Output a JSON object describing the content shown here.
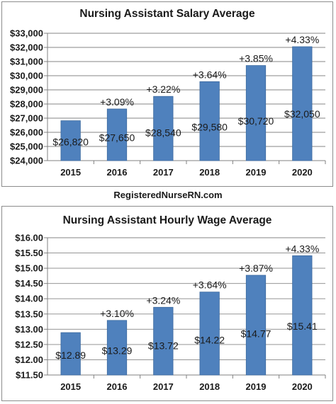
{
  "source_text": "RegisteredNurseRN.com",
  "colors": {
    "bar": "#4f81bd",
    "bar_edge": "#3c6a9f",
    "text": "#1a1a1a",
    "axis": "#808080",
    "grid": "#868686"
  },
  "chart_data": [
    {
      "type": "bar",
      "title": "Nursing Assistant Salary Average",
      "categories": [
        "2015",
        "2016",
        "2017",
        "2018",
        "2019",
        "2020"
      ],
      "values": [
        26820,
        27650,
        28540,
        29580,
        30720,
        32050
      ],
      "value_labels": [
        "$26,820",
        "$27,650",
        "$28,540",
        "$29,580",
        "$30,720",
        "$32,050"
      ],
      "change_labels": [
        "",
        "+3.09%",
        "+3.22%",
        "+3.64%",
        "+3.85%",
        "+4.33%"
      ],
      "ylim": [
        24000,
        33000
      ],
      "yticks": [
        24000,
        25000,
        26000,
        27000,
        28000,
        29000,
        30000,
        31000,
        32000,
        33000
      ],
      "ytick_labels": [
        "$24,000",
        "$25,000",
        "$26,000",
        "$27,000",
        "$28,000",
        "$29,000",
        "$30,000",
        "$31,000",
        "$32,000",
        "$33,000"
      ],
      "grid": true,
      "xlabel": "",
      "ylabel": ""
    },
    {
      "type": "bar",
      "title": "Nursing Assistant Hourly Wage Average",
      "categories": [
        "2015",
        "2016",
        "2017",
        "2018",
        "2019",
        "2020"
      ],
      "values": [
        12.89,
        13.29,
        13.72,
        14.22,
        14.77,
        15.41
      ],
      "value_labels": [
        "$12.89",
        "$13.29",
        "$13.72",
        "$14.22",
        "$14.77",
        "$15.41"
      ],
      "change_labels": [
        "",
        "+3.10%",
        "+3.24%",
        "+3.64%",
        "+3.87%",
        "+4.33%"
      ],
      "ylim": [
        11.5,
        16.0
      ],
      "yticks": [
        11.5,
        12.0,
        12.5,
        13.0,
        13.5,
        14.0,
        14.5,
        15.0,
        15.5,
        16.0
      ],
      "ytick_labels": [
        "$11.50",
        "$12.00",
        "$12.50",
        "$13.00",
        "$13.50",
        "$14.00",
        "$14.50",
        "$15.00",
        "$15.50",
        "$16.00"
      ],
      "grid": true,
      "xlabel": "",
      "ylabel": ""
    }
  ]
}
